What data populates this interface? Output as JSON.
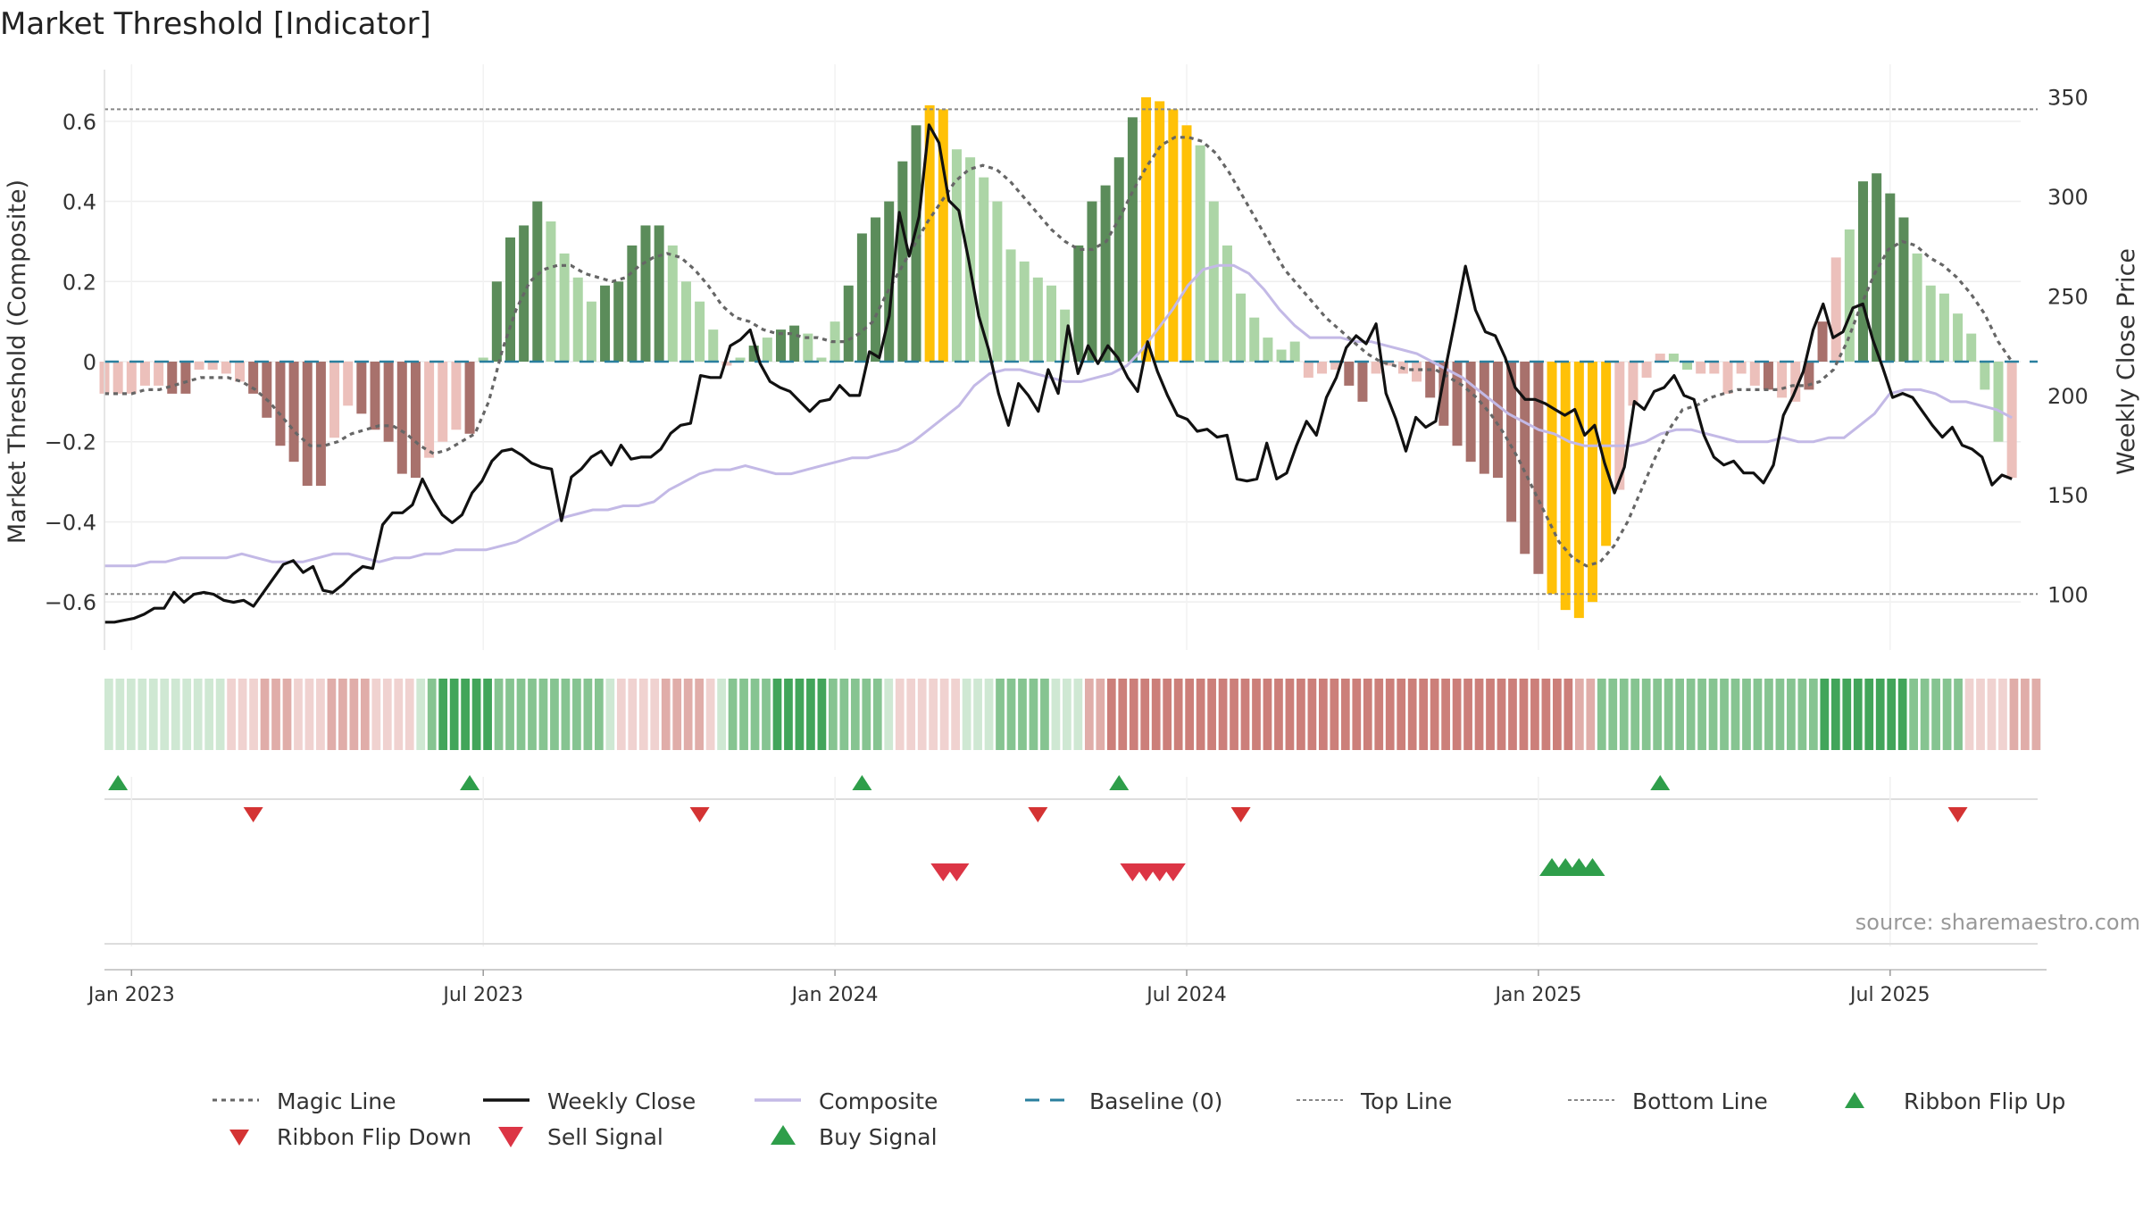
{
  "title": "Market Threshold [Indicator]",
  "source": "source: sharemaestro.com",
  "colors": {
    "bar_strong_green": "#5b8c5a",
    "bar_light_green": "#acd5a6",
    "bar_strong_red": "#a8716c",
    "bar_light_red": "#ecc0bb",
    "bar_extreme": "#ffc107",
    "close_line": "#111111",
    "composite_line": "#c3b9e6",
    "magic_line": "#666666",
    "baseline": "#2a7f9e",
    "threshold_line": "#888888",
    "ribbon_flip_up": "#2e9e4a",
    "ribbon_flip_down": "#d43333",
    "sell_signal": "#dc3545",
    "buy_signal": "#2e9e4a"
  },
  "chart_data": {
    "type": "bar",
    "title": "Market Threshold [Indicator]",
    "y_left": {
      "label": "Market Threshold (Composite)",
      "range": [
        -0.72,
        0.72
      ],
      "ticks": [
        0.6,
        0.4,
        0.2,
        0,
        -0.2,
        -0.4,
        -0.6
      ],
      "tick_labels": [
        "0.6",
        "0.4",
        "0.2",
        "0",
        "−0.2",
        "−0.4",
        "−0.6"
      ]
    },
    "y_right": {
      "label": "Weekly Close Price",
      "range": [
        72,
        362
      ],
      "ticks": [
        350,
        300,
        250,
        200,
        150,
        100
      ],
      "tick_labels": [
        "350",
        "300",
        "250",
        "200",
        "150",
        "100"
      ]
    },
    "x_axis": {
      "tick_labels": [
        "Jan 2023",
        "Jul 2023",
        "Jan 2024",
        "Jul 2024",
        "Jan 2025",
        "Jul 2025"
      ],
      "tick_weeks": [
        2,
        28,
        54,
        80,
        106,
        132
      ]
    },
    "top_line": 0.63,
    "bottom_line": -0.58,
    "composite_bars": [
      -0.08,
      -0.08,
      -0.08,
      -0.06,
      -0.06,
      -0.08,
      -0.08,
      -0.02,
      -0.02,
      -0.03,
      -0.05,
      -0.08,
      -0.14,
      -0.21,
      -0.25,
      -0.31,
      -0.31,
      -0.19,
      -0.11,
      -0.13,
      -0.17,
      -0.2,
      -0.28,
      -0.29,
      -0.24,
      -0.2,
      -0.17,
      -0.18,
      0.01,
      0.2,
      0.31,
      0.34,
      0.4,
      0.35,
      0.27,
      0.21,
      0.15,
      0.19,
      0.2,
      0.29,
      0.34,
      0.34,
      0.29,
      0.2,
      0.15,
      0.08,
      -0.01,
      0.01,
      0.04,
      0.06,
      0.08,
      0.09,
      0.07,
      0.01,
      0.1,
      0.19,
      0.32,
      0.36,
      0.4,
      0.5,
      0.59,
      0.64,
      0.63,
      0.53,
      0.51,
      0.46,
      0.4,
      0.28,
      0.25,
      0.21,
      0.19,
      0.13,
      0.29,
      0.4,
      0.44,
      0.51,
      0.61,
      0.66,
      0.65,
      0.63,
      0.59,
      0.54,
      0.4,
      0.29,
      0.17,
      0.11,
      0.06,
      0.03,
      0.05,
      -0.04,
      -0.03,
      -0.02,
      -0.06,
      -0.1,
      -0.03,
      -0.01,
      -0.03,
      -0.05,
      -0.09,
      -0.16,
      -0.21,
      -0.25,
      -0.28,
      -0.29,
      -0.4,
      -0.48,
      -0.53,
      -0.58,
      -0.62,
      -0.64,
      -0.6,
      -0.46,
      -0.32,
      -0.11,
      -0.04,
      0.02,
      0.02,
      -0.02,
      -0.03,
      -0.03,
      -0.08,
      -0.03,
      -0.06,
      -0.07,
      -0.09,
      -0.1,
      -0.07,
      0.1,
      0.26,
      0.33,
      0.45,
      0.47,
      0.42,
      0.36,
      0.27,
      0.19,
      0.17,
      0.12,
      0.07,
      -0.07,
      -0.2,
      -0.29
    ],
    "bar_classes": [
      "Lr",
      "Lr",
      "Lr",
      "Lr",
      "Lr",
      "Sr",
      "Sr",
      "Lr",
      "Lr",
      "Lr",
      "Lr",
      "Sr",
      "Sr",
      "Sr",
      "Sr",
      "Sr",
      "Sr",
      "Lr",
      "Lr",
      "Sr",
      "Sr",
      "Sr",
      "Sr",
      "Sr",
      "Lr",
      "Lr",
      "Lr",
      "Sr",
      "Lg",
      "Sg",
      "Sg",
      "Sg",
      "Sg",
      "Lg",
      "Lg",
      "Lg",
      "Lg",
      "Sg",
      "Sg",
      "Sg",
      "Sg",
      "Sg",
      "Lg",
      "Lg",
      "Lg",
      "Lg",
      "Lr",
      "Lg",
      "Sg",
      "Lg",
      "Sg",
      "Sg",
      "Lg",
      "Lg",
      "Lg",
      "Sg",
      "Sg",
      "Sg",
      "Sg",
      "Sg",
      "Sg",
      "Y",
      "Y",
      "Lg",
      "Lg",
      "Lg",
      "Lg",
      "Lg",
      "Lg",
      "Lg",
      "Lg",
      "Lg",
      "Sg",
      "Sg",
      "Sg",
      "Sg",
      "Sg",
      "Y",
      "Y",
      "Y",
      "Y",
      "Lg",
      "Lg",
      "Lg",
      "Lg",
      "Lg",
      "Lg",
      "Lg",
      "Lg",
      "Lr",
      "Lr",
      "Lr",
      "Sr",
      "Sr",
      "Lr",
      "Lr",
      "Lr",
      "Lr",
      "Sr",
      "Sr",
      "Sr",
      "Sr",
      "Sr",
      "Sr",
      "Sr",
      "Sr",
      "Sr",
      "Y",
      "Y",
      "Y",
      "Y",
      "Y",
      "Lr",
      "Lr",
      "Lr",
      "Lr",
      "Lg",
      "Lg",
      "Lr",
      "Lr",
      "Lr",
      "Lr",
      "Lr",
      "Sr",
      "Lr",
      "Lr",
      "Sr",
      "Sr",
      "Lr",
      "Lg",
      "Sg",
      "Sg",
      "Sg",
      "Sg",
      "Lg",
      "Lg",
      "Lg",
      "Lg",
      "Lg",
      "Lg",
      "Lg",
      "Lr",
      "Lr",
      "Sr"
    ],
    "weekly_close": [
      86,
      86,
      87,
      88,
      90,
      93,
      93,
      101,
      96,
      100,
      101,
      100,
      97,
      96,
      97,
      94,
      101,
      108,
      115,
      117,
      111,
      114,
      102,
      101,
      105,
      110,
      114,
      113,
      135,
      141,
      141,
      145,
      158,
      148,
      140,
      136,
      140,
      151,
      157,
      167,
      172,
      173,
      170,
      166,
      164,
      163,
      137,
      159,
      163,
      169,
      172,
      165,
      175,
      168,
      169,
      169,
      173,
      181,
      185,
      186,
      210,
      209,
      209,
      225,
      228,
      233,
      216,
      207,
      204,
      202,
      197,
      192,
      197,
      198,
      205,
      200,
      200,
      222,
      219,
      240,
      292,
      270,
      290,
      336,
      327,
      298,
      293,
      268,
      240,
      223,
      201,
      185,
      206,
      200,
      192,
      213,
      201,
      235,
      211,
      225,
      216,
      225,
      219,
      209,
      202,
      227,
      212,
      200,
      190,
      188,
      182,
      183,
      179,
      180,
      158,
      157,
      158,
      176,
      158,
      161,
      175,
      187,
      180,
      199,
      209,
      224,
      230,
      226,
      236,
      201,
      188,
      172,
      189,
      184,
      187,
      214,
      239,
      265,
      243,
      232,
      230,
      219,
      204,
      198,
      198,
      196,
      193,
      190,
      193,
      180,
      185,
      166,
      151,
      164,
      197,
      193,
      202,
      204,
      210,
      200,
      198,
      180,
      169,
      165,
      167,
      161,
      161,
      156,
      165,
      190,
      200,
      212,
      233,
      246,
      229,
      232,
      244,
      246,
      228,
      214,
      199,
      201,
      199,
      192,
      185,
      179,
      184,
      175,
      173,
      169,
      155,
      160,
      158
    ],
    "weekly_close_note": "",
    "magic_line": [
      -0.08,
      -0.08,
      -0.08,
      -0.07,
      -0.07,
      -0.06,
      -0.05,
      -0.04,
      -0.04,
      -0.04,
      -0.05,
      -0.07,
      -0.1,
      -0.14,
      -0.18,
      -0.21,
      -0.21,
      -0.2,
      -0.18,
      -0.17,
      -0.16,
      -0.16,
      -0.18,
      -0.21,
      -0.23,
      -0.22,
      -0.2,
      -0.18,
      -0.1,
      0.03,
      0.13,
      0.2,
      0.23,
      0.24,
      0.24,
      0.22,
      0.21,
      0.2,
      0.21,
      0.24,
      0.26,
      0.27,
      0.26,
      0.23,
      0.19,
      0.14,
      0.11,
      0.1,
      0.08,
      0.07,
      0.07,
      0.06,
      0.06,
      0.05,
      0.05,
      0.07,
      0.1,
      0.17,
      0.23,
      0.29,
      0.35,
      0.4,
      0.45,
      0.48,
      0.49,
      0.48,
      0.45,
      0.41,
      0.37,
      0.33,
      0.3,
      0.28,
      0.28,
      0.3,
      0.36,
      0.43,
      0.49,
      0.54,
      0.56,
      0.56,
      0.55,
      0.52,
      0.47,
      0.41,
      0.35,
      0.29,
      0.23,
      0.19,
      0.15,
      0.11,
      0.08,
      0.05,
      0.02,
      0.0,
      -0.01,
      -0.02,
      -0.02,
      -0.02,
      -0.04,
      -0.06,
      -0.09,
      -0.13,
      -0.18,
      -0.24,
      -0.31,
      -0.38,
      -0.45,
      -0.49,
      -0.51,
      -0.5,
      -0.46,
      -0.4,
      -0.32,
      -0.24,
      -0.17,
      -0.12,
      -0.11,
      -0.09,
      -0.08,
      -0.07,
      -0.07,
      -0.07,
      -0.07,
      -0.06,
      -0.06,
      -0.05,
      -0.02,
      0.05,
      0.14,
      0.22,
      0.28,
      0.3,
      0.29,
      0.26,
      0.24,
      0.21,
      0.17,
      0.12,
      0.05,
      0.0
    ],
    "composite_line": [
      -0.51,
      -0.51,
      -0.51,
      -0.5,
      -0.5,
      -0.49,
      -0.49,
      -0.49,
      -0.49,
      -0.48,
      -0.49,
      -0.5,
      -0.5,
      -0.5,
      -0.49,
      -0.48,
      -0.48,
      -0.49,
      -0.5,
      -0.49,
      -0.49,
      -0.48,
      -0.48,
      -0.47,
      -0.47,
      -0.47,
      -0.46,
      -0.45,
      -0.43,
      -0.41,
      -0.39,
      -0.38,
      -0.37,
      -0.37,
      -0.36,
      -0.36,
      -0.35,
      -0.32,
      -0.3,
      -0.28,
      -0.27,
      -0.27,
      -0.26,
      -0.27,
      -0.28,
      -0.28,
      -0.27,
      -0.26,
      -0.25,
      -0.24,
      -0.24,
      -0.23,
      -0.22,
      -0.2,
      -0.17,
      -0.14,
      -0.11,
      -0.06,
      -0.03,
      -0.02,
      -0.02,
      -0.03,
      -0.04,
      -0.05,
      -0.05,
      -0.04,
      -0.03,
      -0.01,
      0.03,
      0.08,
      0.13,
      0.19,
      0.23,
      0.24,
      0.24,
      0.22,
      0.18,
      0.13,
      0.09,
      0.06,
      0.06,
      0.06,
      0.05,
      0.05,
      0.04,
      0.03,
      0.02,
      0.0,
      -0.02,
      -0.04,
      -0.07,
      -0.1,
      -0.13,
      -0.15,
      -0.17,
      -0.18,
      -0.2,
      -0.21,
      -0.21,
      -0.21,
      -0.21,
      -0.2,
      -0.18,
      -0.17,
      -0.17,
      -0.18,
      -0.19,
      -0.2,
      -0.2,
      -0.2,
      -0.19,
      -0.2,
      -0.2,
      -0.19,
      -0.19,
      -0.16,
      -0.13,
      -0.08,
      -0.07,
      -0.07,
      -0.08,
      -0.1,
      -0.1,
      -0.11,
      -0.12,
      -0.14
    ],
    "ribbon_shades": [
      "lg",
      "lg",
      "lg",
      "lg",
      "lg",
      "lg",
      "lg",
      "lg",
      "lg",
      "lg",
      "lg",
      "lr",
      "lr",
      "lr",
      "mr",
      "mr",
      "mr",
      "lr",
      "lr",
      "lr",
      "mr",
      "mr",
      "mr",
      "mr",
      "lr",
      "lr",
      "lr",
      "lr",
      "lg",
      "mg",
      "dg",
      "dg",
      "dg",
      "dg",
      "dg",
      "mg",
      "mg",
      "mg",
      "mg",
      "mg",
      "mg",
      "mg",
      "mg",
      "mg",
      "mg",
      "lg",
      "lr",
      "lr",
      "lr",
      "lr",
      "mr",
      "mr",
      "mr",
      "mr",
      "lr",
      "lg",
      "mg",
      "mg",
      "mg",
      "mg",
      "dg",
      "dg",
      "dg",
      "dg",
      "dg",
      "mg",
      "mg",
      "mg",
      "mg",
      "mg",
      "lg",
      "lr",
      "lr",
      "lr",
      "lr",
      "lr",
      "lr",
      "lg",
      "lg",
      "lg",
      "mg",
      "mg",
      "mg",
      "mg",
      "mg",
      "lg",
      "lg",
      "lg",
      "mr",
      "mr",
      "dr",
      "dr",
      "dr",
      "dr",
      "dr",
      "dr",
      "dr",
      "dr",
      "dr",
      "dr",
      "dr",
      "dr",
      "dr",
      "dr",
      "dr",
      "dr",
      "dr",
      "dr",
      "dr",
      "dr",
      "dr",
      "dr",
      "dr",
      "dr",
      "dr",
      "dr",
      "dr",
      "dr",
      "dr",
      "dr",
      "dr",
      "dr",
      "dr",
      "dr",
      "dr",
      "dr",
      "dr",
      "dr",
      "dr",
      "dr",
      "dr",
      "dr",
      "mr",
      "mr",
      "mg",
      "mg",
      "mg",
      "mg",
      "mg",
      "mg",
      "mg",
      "mg",
      "mg",
      "mg",
      "mg",
      "mg",
      "mg",
      "mg",
      "mg",
      "mg",
      "mg",
      "mg",
      "mg",
      "mg",
      "dg",
      "dg",
      "dg",
      "dg",
      "dg",
      "dg",
      "dg",
      "dg",
      "mg",
      "mg",
      "mg",
      "mg",
      "mg",
      "lr",
      "lr",
      "lr",
      "lr",
      "mr",
      "mr",
      "mr"
    ],
    "ribbon_flip_up_weeks": [
      1,
      27,
      56,
      75,
      115
    ],
    "ribbon_flip_down_weeks": [
      11,
      44,
      69,
      84,
      137
    ],
    "sell_signal_weeks": [
      62,
      63,
      76,
      77,
      78,
      79
    ],
    "buy_signal_weeks": [
      107,
      108,
      109,
      110
    ],
    "legend": {
      "magic_line": "Magic Line",
      "weekly_close": "Weekly Close",
      "composite": "Composite",
      "baseline": "Baseline (0)",
      "top_line": "Top Line",
      "bottom_line": "Bottom Line",
      "ribbon_flip_up": "Ribbon Flip Up",
      "ribbon_flip_down": "Ribbon Flip Down",
      "sell_signal": "Sell Signal",
      "buy_signal": "Buy Signal"
    }
  }
}
